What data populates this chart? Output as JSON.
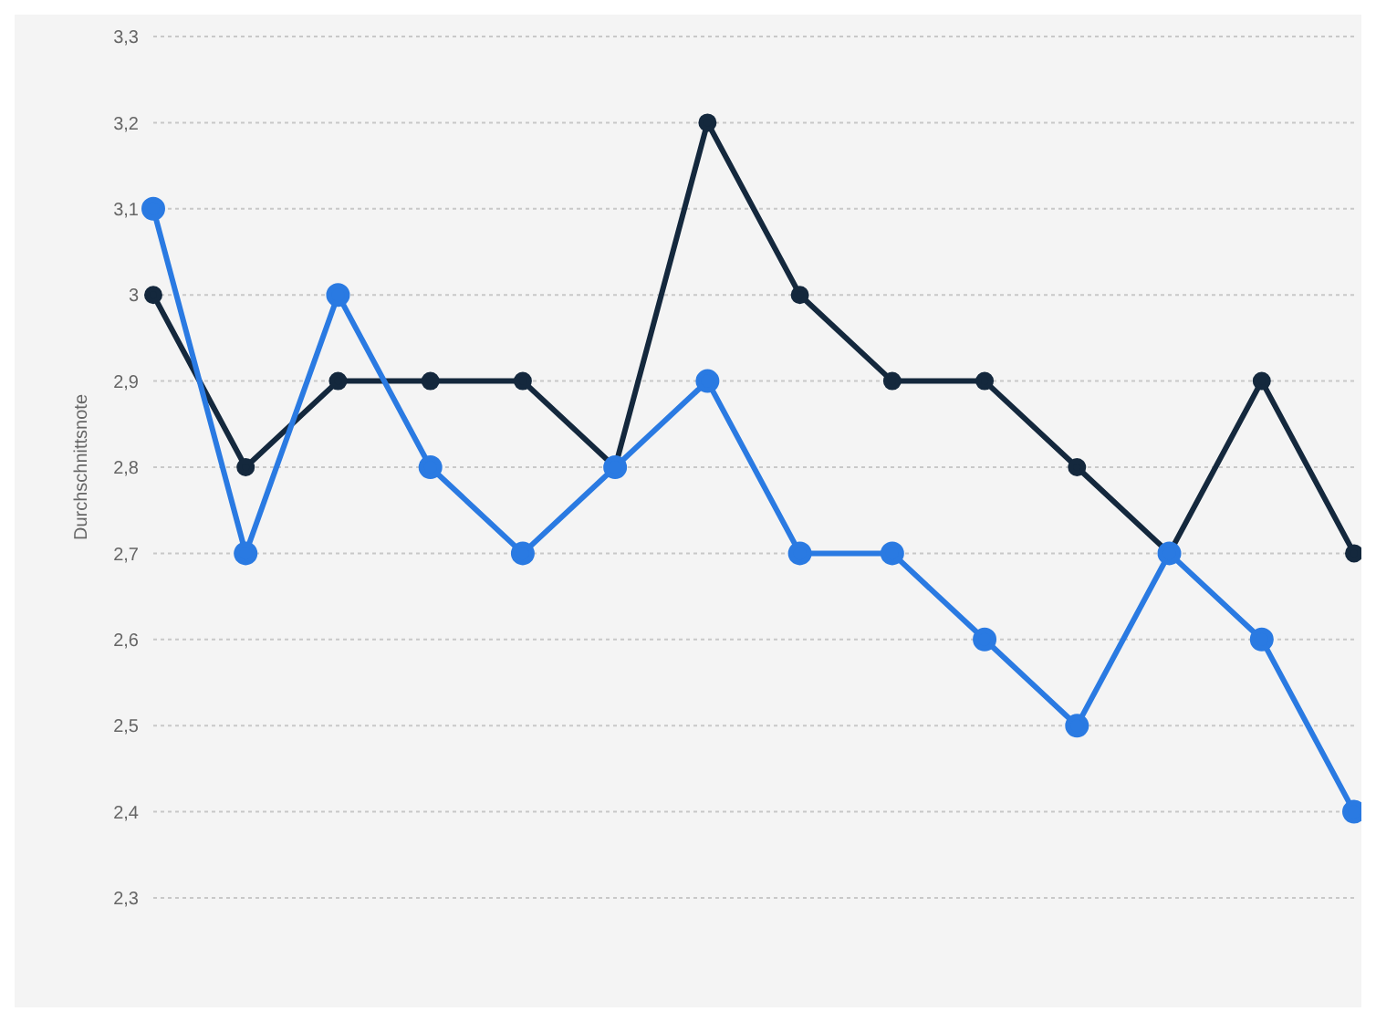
{
  "chart_data": {
    "type": "line",
    "ylabel": "Durchschnittsnote",
    "categories": [
      null,
      null,
      null,
      null,
      null,
      null,
      null,
      null,
      null,
      null,
      null,
      null,
      null,
      null
    ],
    "series": [
      {
        "color": "#2a7ae2",
        "values": [
          3.1,
          2.7,
          3.0,
          2.8,
          2.7,
          2.8,
          2.9,
          2.7,
          2.7,
          2.6,
          2.5,
          2.7,
          2.6,
          2.4
        ]
      },
      {
        "color": "#14283d",
        "values": [
          3.0,
          2.8,
          2.9,
          2.9,
          2.9,
          2.8,
          3.2,
          3.0,
          2.9,
          2.9,
          2.8,
          2.7,
          2.9,
          2.7
        ]
      }
    ],
    "ylim": [
      2.3,
      3.3
    ],
    "yticks": [
      {
        "value": 2.3,
        "label": "2,3"
      },
      {
        "value": 2.4,
        "label": "2,4"
      },
      {
        "value": 2.5,
        "label": "2,5"
      },
      {
        "value": 2.6,
        "label": "2,6"
      },
      {
        "value": 2.7,
        "label": "2,7"
      },
      {
        "value": 2.8,
        "label": "2,8"
      },
      {
        "value": 2.9,
        "label": "2,9"
      },
      {
        "value": 3,
        "label": "3"
      },
      {
        "value": 3.1,
        "label": "3,1"
      },
      {
        "value": 3.2,
        "label": "3,2"
      },
      {
        "value": 3.3,
        "label": "3,3"
      }
    ],
    "grid": "y",
    "marker": "circle",
    "line_style": "solid",
    "legend": false
  }
}
